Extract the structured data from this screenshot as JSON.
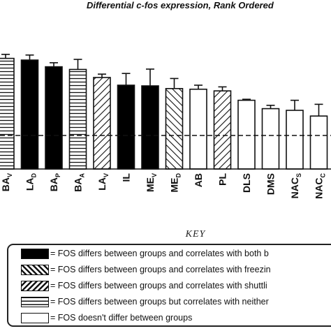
{
  "chart_data": {
    "type": "bar",
    "title": "Differential c-fos expression, Rank Ordered",
    "categories": [
      {
        "label": "BA",
        "sub": "V",
        "pattern": "horizontal"
      },
      {
        "label": "LA",
        "sub": "D",
        "pattern": "solid"
      },
      {
        "label": "BA",
        "sub": "P",
        "pattern": "solid"
      },
      {
        "label": "BA",
        "sub": "A",
        "pattern": "horizontal"
      },
      {
        "label": "LA",
        "sub": "V",
        "pattern": "diag-right"
      },
      {
        "label": "IL",
        "sub": "",
        "pattern": "solid"
      },
      {
        "label": "ME",
        "sub": "V",
        "pattern": "solid"
      },
      {
        "label": "ME",
        "sub": "D",
        "pattern": "diag-left"
      },
      {
        "label": "AB",
        "sub": "",
        "pattern": "open"
      },
      {
        "label": "PL",
        "sub": "",
        "pattern": "diag-right"
      },
      {
        "label": "DLS",
        "sub": "",
        "pattern": "open"
      },
      {
        "label": "DMS",
        "sub": "",
        "pattern": "open"
      },
      {
        "label": "NAC",
        "sub": "S",
        "pattern": "open"
      },
      {
        "label": "NAC",
        "sub": "C",
        "pattern": "open"
      }
    ],
    "values": [
      2.3,
      2.25,
      2.05,
      1.97,
      1.73,
      1.5,
      1.48,
      1.4,
      1.38,
      1.33,
      1.05,
      0.8,
      0.75,
      0.58
    ],
    "errors": [
      0.12,
      0.15,
      0.12,
      0.3,
      0.1,
      0.35,
      0.5,
      0.3,
      0.12,
      0.12,
      0.03,
      0.1,
      0.3,
      0.35
    ],
    "reference_line": 0,
    "ylim": [
      -1.0,
      3.0
    ],
    "grid": false,
    "key": {
      "title": "KEY",
      "entries": [
        {
          "pattern": "solid",
          "text": "= FOS differs between groups and correlates with both b"
        },
        {
          "pattern": "diag-left",
          "text": "= FOS differs between groups and correlates with freezin"
        },
        {
          "pattern": "diag-right",
          "text": "= FOS differs between groups and correlates with shuttli"
        },
        {
          "pattern": "horizontal",
          "text": "= FOS differs between groups but correlates with neither"
        },
        {
          "pattern": "open",
          "text": "= FOS doesn't differ between groups"
        }
      ]
    }
  }
}
